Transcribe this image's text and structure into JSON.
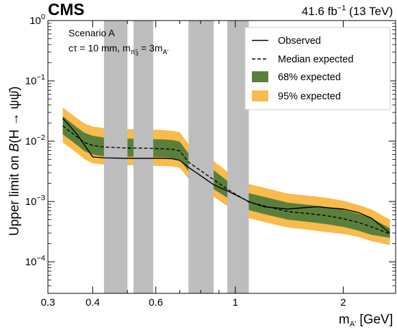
{
  "header": {
    "experiment": "CMS",
    "luminosity_prefix": "41.6 fb",
    "luminosity_exp": "−1",
    "luminosity_suffix": " (13 TeV)"
  },
  "annotation": {
    "scenario": "Scenario A",
    "ctau_prefix": "cτ = 10 mm, m",
    "ctau_sub1": "π̃",
    "ctau_sub1_sub": "3",
    "ctau_mid": " = 3m",
    "ctau_sub2": "A′"
  },
  "axes": {
    "ylabel_prefix": "Upper limit on ",
    "ylabel_B": "B",
    "ylabel_decay": "(H → ψψ̄)",
    "xlabel_main": "m",
    "xlabel_sub": "A′",
    "xlabel_unit": " [GeV]"
  },
  "colors": {
    "band68": "#5a7f3c",
    "band95": "#f8bb4c",
    "veto": "#bdbdbd",
    "line": "#000000"
  },
  "chart_data": {
    "type": "line",
    "title": "",
    "xlabel": "m_A′ [GeV]",
    "ylabel": "Upper limit on B(H → ψψ̄)",
    "x_scale": "log",
    "y_scale": "log",
    "xlim": [
      0.3,
      2.8
    ],
    "ylim": [
      3e-05,
      1
    ],
    "grid": false,
    "legend_position": "top-right",
    "x_ticks": [
      0.3,
      0.4,
      0.6,
      1,
      2
    ],
    "x_tick_labels": [
      "0.3",
      "0.4",
      "0.6",
      "1",
      "2"
    ],
    "y_ticks": [
      0.0001,
      0.001,
      0.01,
      0.1,
      1
    ],
    "y_tick_labels": [
      {
        "base": "10",
        "exp": "−4"
      },
      {
        "base": "10",
        "exp": "−3"
      },
      {
        "base": "10",
        "exp": "−2"
      },
      {
        "base": "10",
        "exp": "−1"
      },
      {
        "base": "10",
        "exp": "0"
      }
    ],
    "excluded_regions": [
      [
        0.43,
        0.5
      ],
      [
        0.52,
        0.59
      ],
      [
        0.74,
        0.87
      ],
      [
        0.95,
        1.09
      ]
    ],
    "series": [
      {
        "name": "Observed",
        "style": "solid",
        "x": [
          0.33,
          0.36,
          0.38,
          0.4,
          0.43,
          0.5,
          0.52,
          0.59,
          0.63,
          0.67,
          0.7,
          0.74,
          0.87,
          0.95,
          1.09,
          1.2,
          1.4,
          1.6,
          1.7,
          1.8,
          2.0,
          2.2,
          2.4,
          2.7
        ],
        "y": [
          0.024,
          0.0135,
          0.0085,
          0.0055,
          0.0053,
          0.0052,
          0.0052,
          0.0052,
          0.0052,
          0.0051,
          0.0048,
          0.0037,
          0.0019,
          0.0015,
          0.001,
          0.00082,
          0.00075,
          0.0008,
          0.00082,
          0.00079,
          0.00075,
          0.00066,
          0.00053,
          0.0003
        ]
      },
      {
        "name": "Median expected",
        "style": "dashed",
        "x": [
          0.33,
          0.36,
          0.38,
          0.4,
          0.43,
          0.5,
          0.52,
          0.59,
          0.63,
          0.67,
          0.7,
          0.74,
          0.87,
          0.95,
          1.09,
          1.2,
          1.4,
          1.6,
          1.8,
          2.0,
          2.2,
          2.4,
          2.7
        ],
        "y": [
          0.018,
          0.012,
          0.0095,
          0.0085,
          0.008,
          0.0077,
          0.0077,
          0.0076,
          0.0075,
          0.0073,
          0.0069,
          0.0045,
          0.0023,
          0.0016,
          0.00098,
          0.00085,
          0.00068,
          0.00063,
          0.00058,
          0.00052,
          0.00045,
          0.00038,
          0.00029
        ]
      },
      {
        "name": "68% expected",
        "style": "band",
        "x": [
          0.33,
          0.36,
          0.38,
          0.4,
          0.43,
          0.5,
          0.52,
          0.59,
          0.63,
          0.67,
          0.7,
          0.74,
          0.87,
          0.95,
          1.09,
          1.2,
          1.4,
          1.6,
          1.8,
          2.0,
          2.2,
          2.4,
          2.7
        ],
        "low": [
          0.013,
          0.0088,
          0.0068,
          0.006,
          0.0056,
          0.0055,
          0.0055,
          0.0054,
          0.0054,
          0.0052,
          0.0049,
          0.0032,
          0.0016,
          0.00115,
          0.00072,
          0.00062,
          0.0005,
          0.00046,
          0.00042,
          0.00038,
          0.00033,
          0.00028,
          0.00025
        ],
        "high": [
          0.026,
          0.0172,
          0.0137,
          0.0123,
          0.0115,
          0.011,
          0.011,
          0.0108,
          0.0107,
          0.0104,
          0.0098,
          0.0063,
          0.0033,
          0.0022,
          0.00138,
          0.0012,
          0.00096,
          0.00088,
          0.00081,
          0.00073,
          0.00063,
          0.00053,
          0.00036
        ]
      },
      {
        "name": "95% expected",
        "style": "band",
        "x": [
          0.33,
          0.36,
          0.38,
          0.4,
          0.43,
          0.5,
          0.52,
          0.59,
          0.63,
          0.67,
          0.7,
          0.74,
          0.87,
          0.95,
          1.09,
          1.2,
          1.4,
          1.6,
          1.8,
          2.0,
          2.2,
          2.4,
          2.7
        ],
        "low": [
          0.0095,
          0.0065,
          0.005,
          0.0043,
          0.0041,
          0.004,
          0.004,
          0.0039,
          0.0039,
          0.0038,
          0.0036,
          0.0024,
          0.0012,
          0.00084,
          0.00053,
          0.00046,
          0.00037,
          0.00034,
          0.00031,
          0.00029,
          0.00026,
          0.00022,
          0.00019
        ],
        "high": [
          0.036,
          0.0245,
          0.0195,
          0.0175,
          0.0165,
          0.0158,
          0.0158,
          0.0155,
          0.0153,
          0.0148,
          0.014,
          0.009,
          0.0047,
          0.0031,
          0.00195,
          0.0017,
          0.00135,
          0.00125,
          0.00115,
          0.00103,
          0.00088,
          0.00074,
          0.0005
        ]
      }
    ]
  }
}
